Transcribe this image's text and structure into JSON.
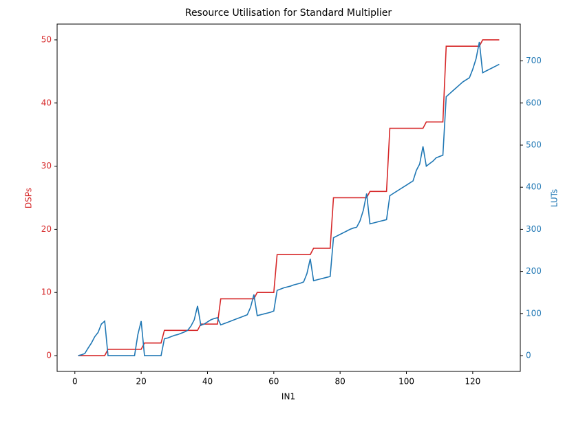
{
  "chart_data": {
    "type": "line",
    "title": "Resource Utilisation for Standard Multiplier",
    "x_label": "IN1",
    "y_label": "DSPs",
    "y2_label": "LUTs",
    "x": [
      1,
      2,
      3,
      4,
      5,
      6,
      7,
      8,
      9,
      10,
      11,
      12,
      13,
      14,
      15,
      16,
      17,
      18,
      19,
      20,
      21,
      22,
      23,
      24,
      25,
      26,
      27,
      28,
      29,
      30,
      31,
      32,
      33,
      34,
      35,
      36,
      37,
      38,
      39,
      40,
      41,
      42,
      43,
      44,
      45,
      46,
      47,
      48,
      49,
      50,
      51,
      52,
      53,
      54,
      55,
      56,
      57,
      58,
      59,
      60,
      61,
      62,
      63,
      64,
      65,
      66,
      67,
      68,
      69,
      70,
      71,
      72,
      73,
      74,
      75,
      76,
      77,
      78,
      79,
      80,
      81,
      82,
      83,
      84,
      85,
      86,
      87,
      88,
      89,
      90,
      91,
      92,
      93,
      94,
      95,
      96,
      97,
      98,
      99,
      100,
      101,
      102,
      103,
      104,
      105,
      106,
      107,
      108,
      109,
      110,
      111,
      112,
      113,
      114,
      115,
      116,
      117,
      118,
      119,
      120,
      121,
      122,
      123,
      124,
      125,
      126,
      127,
      128
    ],
    "series": [
      {
        "name": "DSPs",
        "color": "#d62728",
        "values": [
          0,
          0,
          0,
          0,
          0,
          0,
          0,
          0,
          0,
          1,
          1,
          1,
          1,
          1,
          1,
          1,
          1,
          1,
          1,
          1,
          2,
          2,
          2,
          2,
          2,
          2,
          4,
          4,
          4,
          4,
          4,
          4,
          4,
          4,
          4,
          4,
          4,
          5,
          5,
          5,
          5,
          5,
          5,
          9,
          9,
          9,
          9,
          9,
          9,
          9,
          9,
          9,
          9,
          9,
          10,
          10,
          10,
          10,
          10,
          10,
          16,
          16,
          16,
          16,
          16,
          16,
          16,
          16,
          16,
          16,
          16,
          17,
          17,
          17,
          17,
          17,
          17,
          25,
          25,
          25,
          25,
          25,
          25,
          25,
          25,
          25,
          25,
          25,
          26,
          26,
          26,
          26,
          26,
          26,
          36,
          36,
          36,
          36,
          36,
          36,
          36,
          36,
          36,
          36,
          36,
          37,
          37,
          37,
          37,
          37,
          37,
          49,
          49,
          49,
          49,
          49,
          49,
          49,
          49,
          49,
          49,
          49,
          50,
          50,
          50,
          50,
          50,
          50
        ]
      },
      {
        "name": "LUTs",
        "color": "#1f77b4",
        "axis": "y2",
        "values": [
          0,
          2,
          5,
          18,
          30,
          45,
          55,
          75,
          82,
          0,
          0,
          0,
          0,
          0,
          0,
          0,
          0,
          0,
          50,
          82,
          0,
          0,
          0,
          0,
          0,
          0,
          40,
          42,
          45,
          48,
          50,
          53,
          56,
          60,
          70,
          85,
          118,
          72,
          75,
          80,
          85,
          88,
          90,
          73,
          76,
          79,
          82,
          85,
          88,
          91,
          94,
          97,
          115,
          145,
          95,
          97,
          99,
          101,
          103,
          106,
          155,
          158,
          161,
          163,
          165,
          168,
          170,
          172,
          175,
          195,
          230,
          178,
          180,
          182,
          184,
          186,
          188,
          280,
          284,
          288,
          292,
          296,
          300,
          303,
          305,
          320,
          345,
          385,
          313,
          315,
          317,
          319,
          321,
          323,
          380,
          385,
          390,
          395,
          400,
          405,
          410,
          415,
          440,
          455,
          497,
          450,
          456,
          462,
          470,
          473,
          476,
          615,
          622,
          629,
          636,
          643,
          650,
          655,
          660,
          680,
          705,
          745,
          672,
          676,
          680,
          684,
          688,
          692
        ]
      }
    ],
    "xlim": [
      -5.35,
      134.35
    ],
    "xticks": [
      0,
      20,
      40,
      60,
      80,
      100,
      120
    ],
    "ylim": [
      -2.5,
      52.5
    ],
    "yticks": [
      0,
      10,
      20,
      30,
      40,
      50
    ],
    "y2lim": [
      -37.5,
      787.5
    ],
    "y2ticks": [
      0,
      100,
      200,
      300,
      400,
      500,
      600,
      700
    ]
  }
}
